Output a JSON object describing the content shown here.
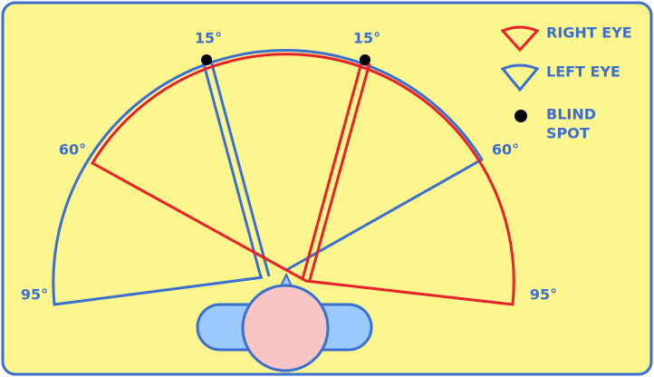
{
  "diagram": {
    "angle_labels": {
      "left_15": "15°",
      "right_15": "15°",
      "left_60": "60°",
      "right_60": "60°",
      "left_95": "95°",
      "right_95": "95°"
    },
    "legend": {
      "right_eye": "RIGHT EYE",
      "left_eye": "LEFT EYE",
      "blind_spot": [
        "BLIND",
        "SPOT"
      ]
    }
  }
}
